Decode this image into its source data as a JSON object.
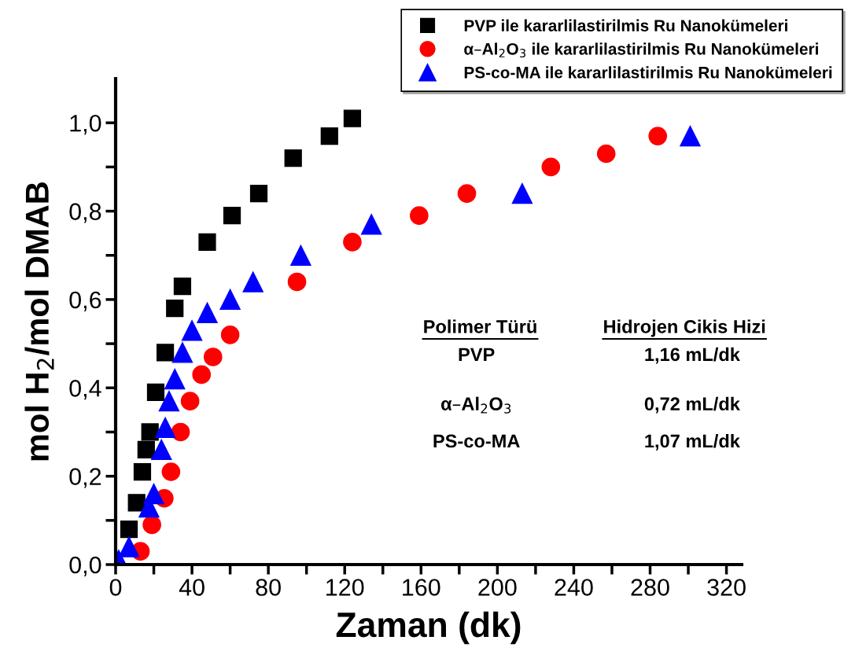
{
  "chart_data": {
    "type": "scatter",
    "xlabel": "Zaman (dk)",
    "ylabel": "mol H$_{2}$/mol DMAB",
    "xlim": [
      0,
      328
    ],
    "ylim": [
      0,
      1.1
    ],
    "xticks": [
      0,
      {
        "value": 20,
        "label": null
      },
      40,
      {
        "value": 60,
        "label": null
      },
      80,
      {
        "value": 100,
        "label": null
      },
      120,
      {
        "value": 140,
        "label": null
      },
      160,
      {
        "value": 180,
        "label": null
      },
      200,
      {
        "value": 220,
        "label": null
      },
      240,
      {
        "value": 260,
        "label": null
      },
      280,
      {
        "value": 300,
        "label": null
      },
      320
    ],
    "yticks": [
      {
        "value": 0,
        "label": "0,0"
      },
      {
        "value": 0.1,
        "label": null
      },
      {
        "value": 0.2,
        "label": "0,2"
      },
      {
        "value": 0.3,
        "label": null
      },
      {
        "value": 0.4,
        "label": "0,4"
      },
      {
        "value": 0.5,
        "label": null
      },
      {
        "value": 0.6,
        "label": "0,6"
      },
      {
        "value": 0.7,
        "label": null
      },
      {
        "value": 0.8,
        "label": "0,8"
      },
      {
        "value": 0.9,
        "label": null
      },
      {
        "value": 1.0,
        "label": "1,0"
      }
    ],
    "grid": false,
    "legend": "top right",
    "series": [
      {
        "name": "PVP ile kararlilastirilmis Ru Nanokümeleri",
        "color": "#000000",
        "marker": "square",
        "x": [
          7,
          11,
          14,
          16,
          18,
          21,
          26,
          31,
          35,
          48,
          61,
          75,
          93,
          112,
          124
        ],
        "values": [
          0.08,
          0.14,
          0.21,
          0.26,
          0.3,
          0.39,
          0.48,
          0.58,
          0.63,
          0.73,
          0.79,
          0.84,
          0.92,
          0.97,
          1.01
        ]
      },
      {
        "name": "α–Al$_{2}$O$_{3}$ ile kararlilastirilmis Ru Nanokümeleri",
        "color": "#ff0000",
        "marker": "circle",
        "x": [
          13,
          19,
          25.5,
          29,
          34,
          39,
          45,
          51,
          60,
          95,
          124,
          159,
          184,
          228,
          257,
          284
        ],
        "values": [
          0.03,
          0.09,
          0.15,
          0.21,
          0.3,
          0.37,
          0.43,
          0.47,
          0.52,
          0.64,
          0.73,
          0.79,
          0.84,
          0.9,
          0.93,
          0.97
        ]
      },
      {
        "name": "PS-co-MA ile kararlilastirilmis Ru Nanokümeleri",
        "color": "#0000ff",
        "marker": "triangle",
        "x": [
          1.6,
          7,
          17.5,
          20,
          24,
          26,
          28,
          31,
          35,
          40,
          48,
          60,
          72,
          97,
          134,
          213,
          301
        ],
        "values": [
          0.01,
          0.04,
          0.13,
          0.16,
          0.26,
          0.31,
          0.37,
          0.42,
          0.48,
          0.53,
          0.57,
          0.6,
          0.64,
          0.7,
          0.77,
          0.84,
          0.97
        ]
      }
    ],
    "annotations": [
      "Polimer Türü",
      "Hidrojen Cikis Hizi",
      "PVP",
      "1,16 mL/dk",
      "α–Al$_{2}$O$_{3}$",
      "0,72 mL/dk",
      "PS-co-MA",
      "1,07 mL/dk"
    ]
  }
}
